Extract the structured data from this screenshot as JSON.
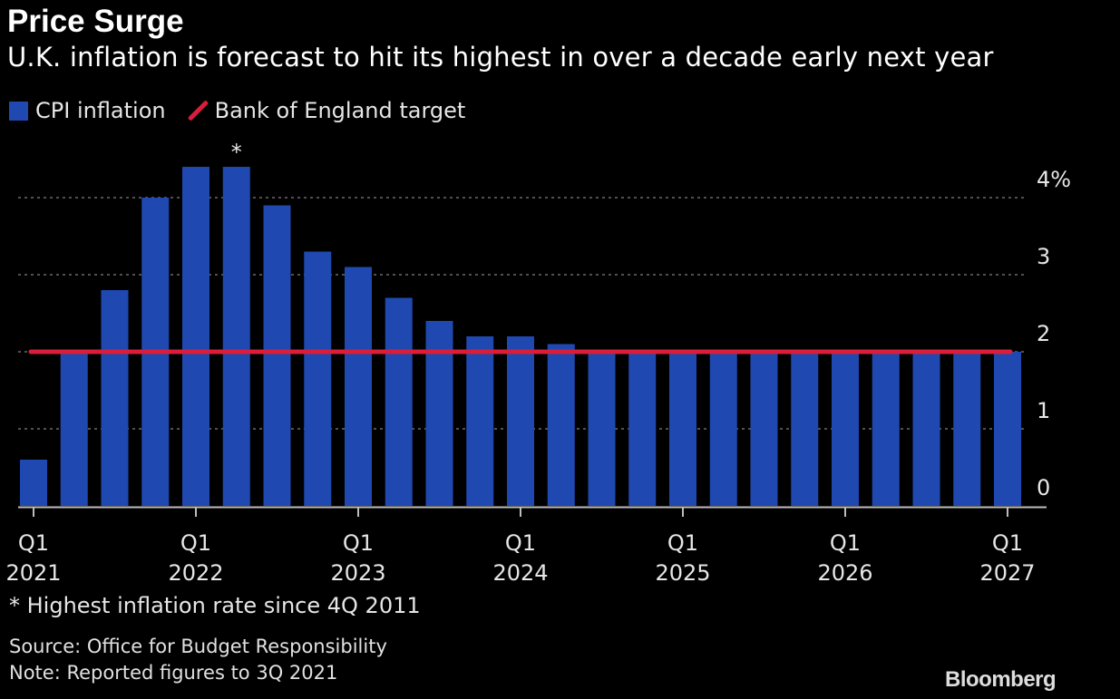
{
  "header": {
    "title": "Price Surge",
    "subtitle": "U.K. inflation is forecast to hit its highest in over a decade early next year"
  },
  "legend": {
    "bar_label": "CPI inflation",
    "line_label": "Bank of England target"
  },
  "colors": {
    "background": "#000000",
    "bar": "#1f49b0",
    "target_line": "#d81e3a",
    "gridline": "#6b6b6b",
    "text": "#e6e6e6"
  },
  "chart_data": {
    "type": "bar",
    "categories": [
      "Q1 2021",
      "Q2 2021",
      "Q3 2021",
      "Q4 2021",
      "Q1 2022",
      "Q2 2022",
      "Q3 2022",
      "Q4 2022",
      "Q1 2023",
      "Q2 2023",
      "Q3 2023",
      "Q4 2023",
      "Q1 2024",
      "Q2 2024",
      "Q3 2024",
      "Q4 2024",
      "Q1 2025",
      "Q2 2025",
      "Q3 2025",
      "Q4 2025",
      "Q1 2026",
      "Q2 2026",
      "Q3 2026",
      "Q4 2026",
      "Q1 2027"
    ],
    "series": [
      {
        "name": "CPI inflation",
        "values": [
          0.6,
          2.0,
          2.8,
          4.0,
          4.4,
          4.4,
          3.9,
          3.3,
          3.1,
          2.7,
          2.4,
          2.2,
          2.2,
          2.1,
          2.0,
          2.0,
          2.0,
          2.0,
          2.0,
          2.0,
          2.0,
          2.0,
          2.0,
          2.0,
          2.0
        ]
      },
      {
        "name": "Bank of England target",
        "type": "line",
        "values": [
          2.0,
          2.0,
          2.0,
          2.0,
          2.0,
          2.0,
          2.0,
          2.0,
          2.0,
          2.0,
          2.0,
          2.0,
          2.0,
          2.0,
          2.0,
          2.0,
          2.0,
          2.0,
          2.0,
          2.0,
          2.0,
          2.0,
          2.0,
          2.0,
          2.0
        ]
      }
    ],
    "yticks": [
      "0",
      "1",
      "2",
      "3",
      "4%"
    ],
    "ylim": [
      0,
      4.5
    ],
    "xticks": [
      {
        "index": 0,
        "quarter": "Q1",
        "year": "2021"
      },
      {
        "index": 4,
        "quarter": "Q1",
        "year": "2022"
      },
      {
        "index": 8,
        "quarter": "Q1",
        "year": "2023"
      },
      {
        "index": 12,
        "quarter": "Q1",
        "year": "2024"
      },
      {
        "index": 16,
        "quarter": "Q1",
        "year": "2025"
      },
      {
        "index": 20,
        "quarter": "Q1",
        "year": "2026"
      },
      {
        "index": 24,
        "quarter": "Q1",
        "year": "2027"
      }
    ],
    "annotation": {
      "index": 5,
      "symbol": "*"
    },
    "grid": true,
    "legend_position": "top-left"
  },
  "footer": {
    "footnote": "* Highest inflation rate since 4Q 2011",
    "source": "Source: Office for Budget Responsibility",
    "note": "Note: Reported figures to 3Q 2021",
    "brand": "Bloomberg"
  }
}
